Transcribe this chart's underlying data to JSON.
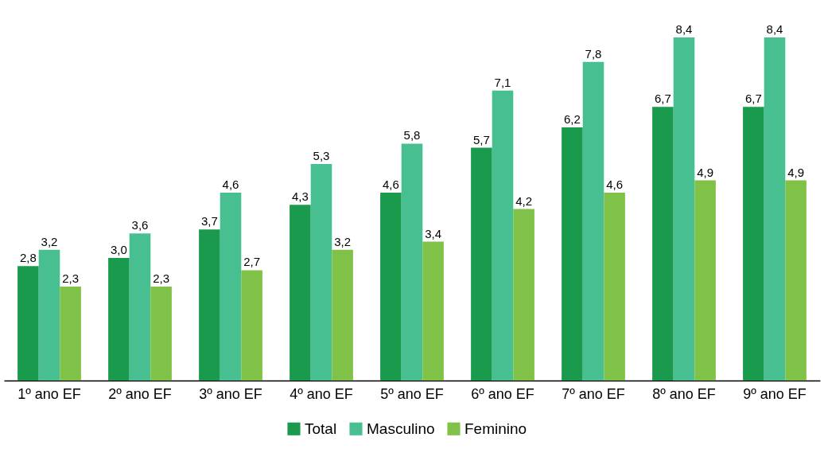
{
  "chart_data": {
    "type": "bar",
    "categories": [
      "1º ano EF",
      "2º ano EF",
      "3º ano EF",
      "4º ano EF",
      "5º ano EF",
      "6º ano EF",
      "7º ano EF",
      "8º ano EF",
      "9º ano EF"
    ],
    "series": [
      {
        "name": "Total",
        "color": "#1a9a4c",
        "values": [
          2.8,
          3.0,
          3.7,
          4.3,
          4.6,
          5.7,
          6.2,
          6.7,
          6.7
        ],
        "value_labels": [
          "2,8",
          "3,0",
          "3,7",
          "4,3",
          "4,6",
          "5,7",
          "6,2",
          "6,7",
          "6,7"
        ]
      },
      {
        "name": "Masculino",
        "color": "#47bf91",
        "values": [
          3.2,
          3.6,
          4.6,
          5.3,
          5.8,
          7.1,
          7.8,
          8.4,
          8.4
        ],
        "value_labels": [
          "3,2",
          "3,6",
          "4,6",
          "5,3",
          "5,8",
          "7,1",
          "7,8",
          "8,4",
          "8,4"
        ]
      },
      {
        "name": "Feminino",
        "color": "#80c247",
        "values": [
          2.3,
          2.3,
          2.7,
          3.2,
          3.4,
          4.2,
          4.6,
          4.9,
          4.9
        ],
        "value_labels": [
          "2,3",
          "2,3",
          "2,7",
          "3,2",
          "3,4",
          "4,2",
          "4,6",
          "4,9",
          "4,9"
        ]
      }
    ],
    "legend": "bottom",
    "grid": false
  }
}
